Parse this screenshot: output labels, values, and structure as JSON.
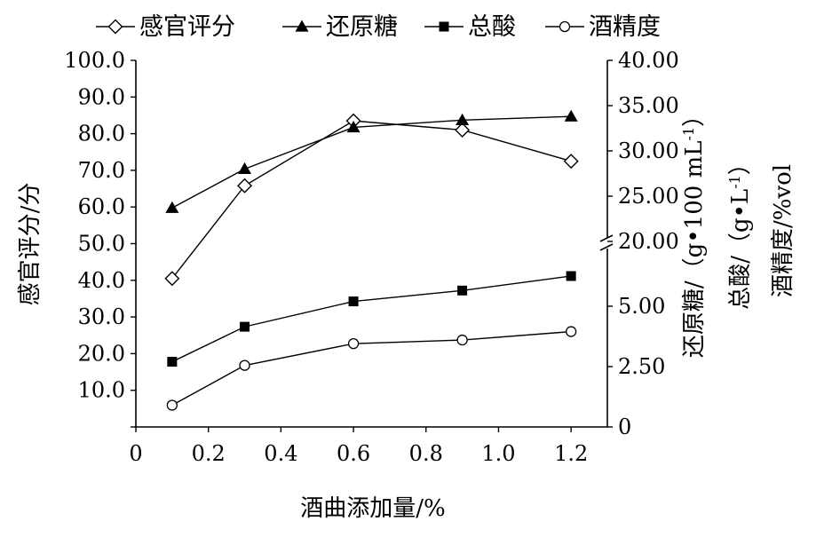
{
  "chart_data": {
    "type": "line",
    "x": [
      0.1,
      0.3,
      0.6,
      0.9,
      1.2
    ],
    "xlabel": "酒曲添加量/%",
    "xlim": [
      0,
      1.3
    ],
    "xticks": [
      "0",
      "0.2",
      "0.4",
      "0.6",
      "0.8",
      "1.0",
      "1.2"
    ],
    "ylabel_left": "感官评分/分",
    "ylim_left": [
      0,
      100
    ],
    "yticks_left": [
      "10.0",
      "20.0",
      "30.0",
      "40.0",
      "50.0",
      "60.0",
      "70.0",
      "80.0",
      "90.0",
      "100.0"
    ],
    "ylabels_right": [
      "还原糖/（g•100 mL",
      "总酸/（g•L",
      "酒精度/%vol"
    ],
    "yticks_right_upper": [
      "20.00",
      "25.00",
      "30.00",
      "35.00",
      "40.00"
    ],
    "yticks_right_lower": [
      "0",
      "2.50",
      "5.00"
    ],
    "right_axis_break": true,
    "grid": false,
    "legend_position": "top",
    "series": [
      {
        "name": "感官评分",
        "axis": "left",
        "marker": "diamond-open",
        "values": [
          40.5,
          65.8,
          83.5,
          81.0,
          72.5
        ]
      },
      {
        "name": "还原糖",
        "axis": "right-upper",
        "marker": "triangle-filled",
        "values": [
          23.7,
          28.0,
          32.6,
          33.4,
          33.8
        ]
      },
      {
        "name": "总酸",
        "axis": "right-lower",
        "marker": "square-filled",
        "values": [
          2.7,
          4.15,
          5.2,
          5.65,
          6.25
        ]
      },
      {
        "name": "酒精度",
        "axis": "right-lower",
        "marker": "circle-open",
        "values": [
          0.9,
          2.55,
          3.45,
          3.6,
          3.95
        ]
      }
    ]
  }
}
